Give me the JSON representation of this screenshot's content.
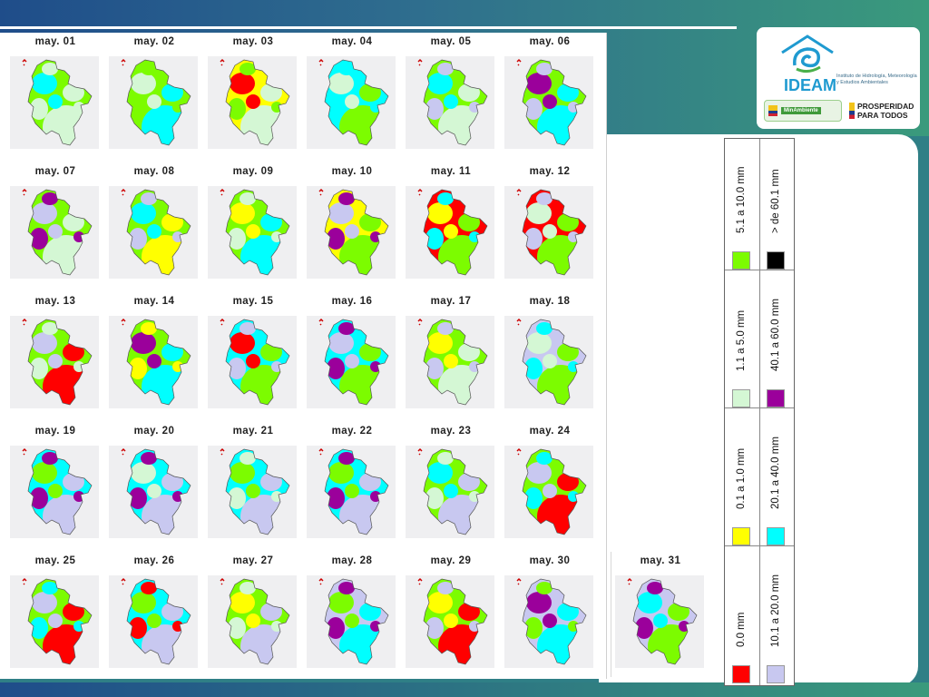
{
  "logo": {
    "name": "IDEAM",
    "subtitle": "Instituto de Hidrología, Meteorología y Estudios Ambientales",
    "ministry": "MinAmbiente",
    "slogan_line1": "PROSPERIDAD",
    "slogan_line2": "PARA TODOS"
  },
  "days": [
    "may. 01",
    "may. 02",
    "may. 03",
    "may. 04",
    "may. 05",
    "may. 06",
    "may. 07",
    "may. 08",
    "may. 09",
    "may. 10",
    "may. 11",
    "may. 12",
    "may. 13",
    "may. 14",
    "may. 15",
    "may. 16",
    "may. 17",
    "may. 18",
    "may. 19",
    "may. 20",
    "may. 21",
    "may. 22",
    "may. 23",
    "may. 24",
    "may. 25",
    "may. 26",
    "may. 27",
    "may. 28",
    "may. 29",
    "may. 30",
    "may. 31"
  ],
  "legend": [
    {
      "label": "0.0 mm",
      "color": "#ff0000"
    },
    {
      "label": "0.1 a 1.0 mm",
      "color": "#ffff00"
    },
    {
      "label": "1.1 a 5.0 mm",
      "color": "#d4f7d4"
    },
    {
      "label": "5.1 a 10.0 mm",
      "color": "#7cfc00"
    },
    {
      "label": "10.1 a 20.0 mm",
      "color": "#c8c8f0"
    },
    {
      "label": "20.1 a 40.0 mm",
      "color": "#00ffff"
    },
    {
      "label": "40.1 a 60.0 mm",
      "color": "#9b009b"
    },
    {
      "label": "> de 60.1 mm",
      "color": "#000000"
    }
  ],
  "day_patterns": [
    [
      3,
      2,
      5,
      2
    ],
    [
      3,
      5,
      2,
      3
    ],
    [
      1,
      2,
      0,
      3
    ],
    [
      5,
      3,
      2,
      5
    ],
    [
      3,
      2,
      5,
      4
    ],
    [
      3,
      5,
      6,
      4
    ],
    [
      3,
      2,
      4,
      6
    ],
    [
      3,
      1,
      5,
      4
    ],
    [
      3,
      5,
      1,
      2
    ],
    [
      1,
      3,
      4,
      6
    ],
    [
      0,
      3,
      1,
      5
    ],
    [
      0,
      3,
      2,
      4
    ],
    [
      3,
      0,
      4,
      2
    ],
    [
      3,
      5,
      6,
      1
    ],
    [
      5,
      3,
      0,
      4
    ],
    [
      5,
      3,
      4,
      6
    ],
    [
      3,
      2,
      1,
      4
    ],
    [
      4,
      3,
      2,
      5
    ],
    [
      5,
      4,
      3,
      6
    ],
    [
      5,
      4,
      2,
      6
    ],
    [
      5,
      4,
      3,
      2
    ],
    [
      5,
      4,
      3,
      6
    ],
    [
      3,
      4,
      5,
      2
    ],
    [
      3,
      0,
      4,
      5
    ],
    [
      3,
      0,
      4,
      5
    ],
    [
      5,
      4,
      3,
      0
    ],
    [
      3,
      4,
      1,
      2
    ],
    [
      4,
      5,
      3,
      6
    ],
    [
      3,
      0,
      1,
      4
    ],
    [
      4,
      5,
      6,
      3
    ],
    [
      4,
      3,
      5,
      6
    ]
  ]
}
